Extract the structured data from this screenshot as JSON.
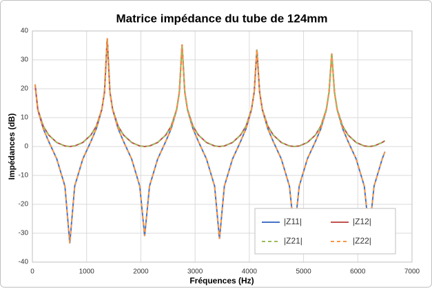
{
  "chart_data": {
    "type": "line",
    "title": "Matrice impédance du tube de 124mm",
    "x_label": "Fréquences (Hz)",
    "y_label": "Impédances (dB)",
    "x": [
      50,
      100,
      200,
      300,
      450,
      600,
      690,
      780,
      930,
      1080,
      1180,
      1280,
      1330,
      1380,
      1430,
      1480,
      1580,
      1680,
      1830,
      1980,
      2070,
      2160,
      2310,
      2460,
      2560,
      2660,
      2710,
      2760,
      2810,
      2860,
      2960,
      3060,
      3210,
      3360,
      3450,
      3540,
      3690,
      3840,
      3940,
      4040,
      4090,
      4140,
      4190,
      4240,
      4340,
      4440,
      4590,
      4740,
      4830,
      4920,
      5070,
      5220,
      5320,
      5420,
      5470,
      5520,
      5570,
      5620,
      5720,
      5820,
      5970,
      6120,
      6210,
      6300,
      6450,
      6500
    ],
    "series": [
      {
        "name": "|Z11|",
        "color": "#4472c4",
        "dashed": false,
        "values": [
          21.5,
          12.7,
          6.2,
          1.8,
          -4.3,
          -13.7,
          -33.5,
          -13.7,
          -4.3,
          1.8,
          6.2,
          12.7,
          18.8,
          37.5,
          18.8,
          12.7,
          6.2,
          1.8,
          -4.3,
          -13.7,
          -31,
          -13.7,
          -4.3,
          1.8,
          6.2,
          12.7,
          18.8,
          35.3,
          18.8,
          12.7,
          6.2,
          1.8,
          -4.3,
          -13.7,
          -32,
          -13.7,
          -4.3,
          1.8,
          6.2,
          12.7,
          18.8,
          33.5,
          18.8,
          12.7,
          6.2,
          1.8,
          -4.3,
          -13.7,
          -30,
          -13.7,
          -4.3,
          1.8,
          6.2,
          12.7,
          18.8,
          32.2,
          18.8,
          12.7,
          6.2,
          1.8,
          -4.3,
          -13.7,
          -30,
          -13.7,
          -4.3,
          -1.8
        ]
      },
      {
        "name": "|Z12|",
        "color": "#c0504d",
        "dashed": false,
        "values": [
          21.5,
          12.9,
          7.1,
          4.0,
          1.4,
          0.2,
          0,
          0.2,
          1.4,
          4.0,
          7.1,
          12.9,
          18.9,
          37.5,
          18.9,
          12.9,
          7.1,
          4.0,
          1.4,
          0.2,
          0,
          0.2,
          1.4,
          4.0,
          7.1,
          12.9,
          18.9,
          35.3,
          18.9,
          12.9,
          7.1,
          4.0,
          1.4,
          0.2,
          0,
          0.2,
          1.4,
          4.0,
          7.1,
          12.9,
          18.9,
          33.5,
          18.9,
          12.9,
          7.1,
          4.0,
          1.4,
          0.2,
          0,
          0.2,
          1.4,
          4.0,
          7.1,
          12.9,
          18.9,
          32.2,
          18.9,
          12.9,
          7.1,
          4.0,
          1.4,
          0.2,
          0,
          0.2,
          1.4,
          2.0
        ]
      },
      {
        "name": "|Z21|",
        "color": "#9bbb59",
        "dashed": true,
        "values": [
          21.5,
          12.9,
          7.1,
          4.0,
          1.4,
          0.2,
          0,
          0.2,
          1.4,
          4.0,
          7.1,
          12.9,
          18.9,
          37.5,
          18.9,
          12.9,
          7.1,
          4.0,
          1.4,
          0.2,
          0,
          0.2,
          1.4,
          4.0,
          7.1,
          12.9,
          18.9,
          35.3,
          18.9,
          12.9,
          7.1,
          4.0,
          1.4,
          0.2,
          0,
          0.2,
          1.4,
          4.0,
          7.1,
          12.9,
          18.9,
          33.5,
          18.9,
          12.9,
          7.1,
          4.0,
          1.4,
          0.2,
          0,
          0.2,
          1.4,
          4.0,
          7.1,
          12.9,
          18.9,
          32.2,
          18.9,
          12.9,
          7.1,
          4.0,
          1.4,
          0.2,
          0,
          0.2,
          1.4,
          2.0
        ]
      },
      {
        "name": "|Z22|",
        "color": "#f79646",
        "dashed": true,
        "values": [
          21.5,
          12.7,
          6.2,
          1.8,
          -4.3,
          -13.7,
          -33.5,
          -13.7,
          -4.3,
          1.8,
          6.2,
          12.7,
          18.8,
          37.5,
          18.8,
          12.7,
          6.2,
          1.8,
          -4.3,
          -13.7,
          -31,
          -13.7,
          -4.3,
          1.8,
          6.2,
          12.7,
          18.8,
          35.3,
          18.8,
          12.7,
          6.2,
          1.8,
          -4.3,
          -13.7,
          -32,
          -13.7,
          -4.3,
          1.8,
          6.2,
          12.7,
          18.8,
          33.5,
          18.8,
          12.7,
          6.2,
          1.8,
          -4.3,
          -13.7,
          -30,
          -13.7,
          -4.3,
          1.8,
          6.2,
          12.7,
          18.8,
          32.2,
          18.8,
          12.7,
          6.2,
          1.8,
          -4.3,
          -13.7,
          -30,
          -13.7,
          -4.3,
          -1.8
        ]
      }
    ],
    "xlim": [
      0,
      7000
    ],
    "xticks": [
      0,
      1000,
      2000,
      3000,
      4000,
      5000,
      6000,
      7000
    ],
    "ylim": [
      -40,
      40
    ],
    "yticks": [
      -40,
      -30,
      -20,
      -10,
      0,
      10,
      20,
      30,
      40
    ],
    "grid": true,
    "legend": "lower right"
  }
}
